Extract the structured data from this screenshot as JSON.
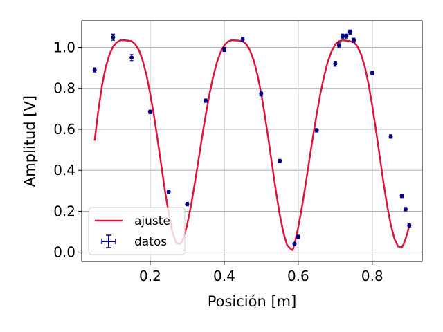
{
  "chart_data": {
    "type": "scatter",
    "xlabel": "Posición [m]",
    "ylabel": "Amplitud [V]",
    "xlim": [
      0.015,
      0.935
    ],
    "ylim": [
      -0.045,
      1.13
    ],
    "xticks": [
      0.2,
      0.4,
      0.6,
      0.8
    ],
    "yticks": [
      0.0,
      0.2,
      0.4,
      0.6,
      0.8,
      1.0
    ],
    "xtick_labels": [
      "0.2",
      "0.4",
      "0.6",
      "0.8"
    ],
    "ytick_labels": [
      "0.0",
      "0.2",
      "0.4",
      "0.6",
      "0.8",
      "1.0"
    ],
    "grid": true,
    "legend_placement": "lower-left",
    "series": [
      {
        "name": "ajuste",
        "kind": "line",
        "color": "#dc143c",
        "x": [
          0.05,
          0.06,
          0.07,
          0.08,
          0.09,
          0.1,
          0.11,
          0.12,
          0.13,
          0.14,
          0.15,
          0.16,
          0.17,
          0.18,
          0.19,
          0.2,
          0.21,
          0.22,
          0.23,
          0.24,
          0.25,
          0.26,
          0.27,
          0.28,
          0.285,
          0.29,
          0.295,
          0.3,
          0.31,
          0.32,
          0.33,
          0.34,
          0.35,
          0.36,
          0.37,
          0.38,
          0.39,
          0.4,
          0.41,
          0.42,
          0.43,
          0.44,
          0.45,
          0.46,
          0.47,
          0.48,
          0.49,
          0.5,
          0.51,
          0.52,
          0.53,
          0.54,
          0.55,
          0.56,
          0.57,
          0.58,
          0.585,
          0.59,
          0.595,
          0.6,
          0.61,
          0.62,
          0.63,
          0.64,
          0.65,
          0.66,
          0.67,
          0.68,
          0.69,
          0.7,
          0.71,
          0.72,
          0.73,
          0.74,
          0.75,
          0.76,
          0.77,
          0.78,
          0.79,
          0.8,
          0.81,
          0.82,
          0.83,
          0.84,
          0.85,
          0.86,
          0.87,
          0.88,
          0.885,
          0.89,
          0.895,
          0.9
        ],
        "y": [
          0.545,
          0.695,
          0.815,
          0.905,
          0.965,
          1.005,
          1.025,
          1.035,
          1.035,
          1.033,
          1.03,
          1.015,
          0.985,
          0.935,
          0.865,
          0.775,
          0.67,
          0.55,
          0.425,
          0.3,
          0.19,
          0.1,
          0.045,
          0.04,
          0.05,
          0.07,
          0.1,
          0.135,
          0.225,
          0.33,
          0.445,
          0.56,
          0.67,
          0.77,
          0.855,
          0.925,
          0.975,
          1.01,
          1.028,
          1.035,
          1.034,
          1.033,
          1.03,
          1.015,
          0.985,
          0.935,
          0.865,
          0.775,
          0.665,
          0.545,
          0.42,
          0.295,
          0.185,
          0.095,
          0.035,
          0.015,
          0.01,
          0.04,
          0.08,
          0.12,
          0.22,
          0.33,
          0.45,
          0.565,
          0.675,
          0.775,
          0.86,
          0.93,
          0.98,
          1.015,
          1.03,
          1.035,
          1.033,
          1.03,
          1.025,
          1.005,
          0.965,
          0.905,
          0.82,
          0.715,
          0.595,
          0.47,
          0.345,
          0.23,
          0.135,
          0.065,
          0.028,
          0.025,
          0.04,
          0.065,
          0.095,
          0.13
        ]
      },
      {
        "name": "datos",
        "kind": "errorbar",
        "color": "#000080",
        "x": [
          0.05,
          0.1,
          0.15,
          0.2,
          0.25,
          0.3,
          0.35,
          0.4,
          0.45,
          0.5,
          0.55,
          0.59,
          0.6,
          0.65,
          0.7,
          0.71,
          0.72,
          0.73,
          0.74,
          0.75,
          0.8,
          0.85,
          0.88,
          0.89,
          0.9
        ],
        "y": [
          0.89,
          1.05,
          0.95,
          0.685,
          0.295,
          0.235,
          0.74,
          0.99,
          1.04,
          0.775,
          0.445,
          0.04,
          0.075,
          0.595,
          0.92,
          1.01,
          1.055,
          1.055,
          1.075,
          1.035,
          0.875,
          0.565,
          0.275,
          0.21,
          0.13
        ],
        "yerr": [
          0.01,
          0.015,
          0.015,
          0.008,
          0.006,
          0.006,
          0.008,
          0.01,
          0.01,
          0.012,
          0.006,
          0.006,
          0.006,
          0.008,
          0.012,
          0.012,
          0.01,
          0.01,
          0.01,
          0.01,
          0.008,
          0.006,
          0.006,
          0.006,
          0.006
        ],
        "xerr": [
          0.002,
          0.002,
          0.002,
          0.002,
          0.002,
          0.002,
          0.002,
          0.002,
          0.002,
          0.002,
          0.002,
          0.002,
          0.002,
          0.002,
          0.002,
          0.002,
          0.002,
          0.002,
          0.002,
          0.002,
          0.002,
          0.002,
          0.002,
          0.002,
          0.002
        ]
      }
    ]
  }
}
